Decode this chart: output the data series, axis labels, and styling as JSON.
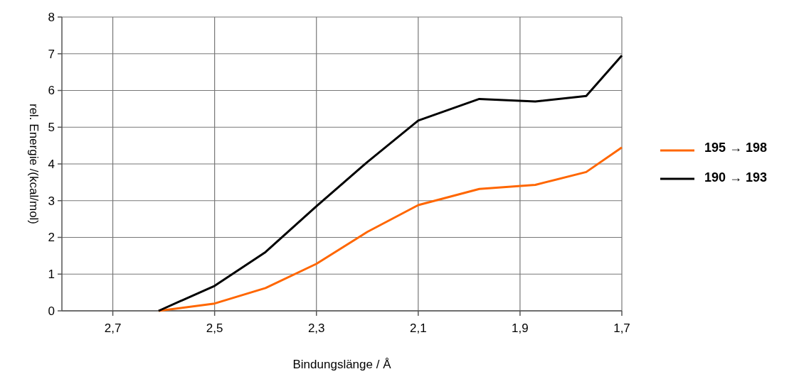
{
  "chart_data": {
    "type": "line",
    "xlabel": "Bindungslänge / Å",
    "ylabel": "rel. Energie /(kcal/mol)",
    "x": [
      2.61,
      2.5,
      2.4,
      2.3,
      2.2,
      2.1,
      1.98,
      1.87,
      1.77,
      1.7
    ],
    "series": [
      {
        "name": "195 → 198",
        "color": "#ff6600",
        "values": [
          0,
          0.2,
          0.62,
          1.28,
          2.15,
          2.88,
          3.32,
          3.43,
          3.78,
          4.45
        ]
      },
      {
        "name": "190 → 193",
        "color": "#000000",
        "values": [
          0,
          0.68,
          1.6,
          2.85,
          4.05,
          5.18,
          5.77,
          5.7,
          5.85,
          6.95
        ]
      }
    ],
    "xlim": [
      2.8,
      1.7
    ],
    "xticks": [
      {
        "value": 2.7,
        "label": "2,7"
      },
      {
        "value": 2.5,
        "label": "2,5"
      },
      {
        "value": 2.3,
        "label": "2,3"
      },
      {
        "value": 2.1,
        "label": "2,1"
      },
      {
        "value": 1.9,
        "label": "1,9"
      },
      {
        "value": 1.7,
        "label": "1,7"
      }
    ],
    "ylim": [
      0,
      8
    ],
    "yticks": [
      0,
      1,
      2,
      3,
      4,
      5,
      6,
      7,
      8
    ],
    "grid": true,
    "legend": "right",
    "marker": "none",
    "line_style": "solid"
  }
}
